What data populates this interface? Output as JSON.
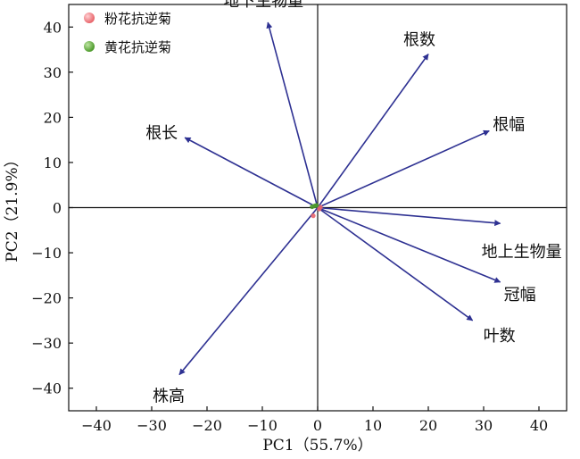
{
  "chart_data": {
    "type": "scatter",
    "subtype": "pca-biplot",
    "title": "",
    "xlabel": "PC1（55.7%）",
    "ylabel": "PC2（21.9%）",
    "xlim": [
      -45,
      45
    ],
    "ylim": [
      -45,
      45
    ],
    "xticks": [
      -40,
      -30,
      -20,
      -10,
      0,
      10,
      20,
      30,
      40
    ],
    "yticks": [
      -40,
      -30,
      -20,
      -10,
      0,
      10,
      20,
      30,
      40
    ],
    "grid": false,
    "reference_lines": {
      "x": 0,
      "y": 0
    },
    "legend_position": "top-left",
    "series": [
      {
        "name": "粉花抗逆菊",
        "color": "#e8646a",
        "points": [
          {
            "x": 0.5,
            "y": 0.1
          },
          {
            "x": -0.8,
            "y": -1.8
          },
          {
            "x": 0.3,
            "y": -0.3
          }
        ]
      },
      {
        "name": "黄花抗逆菊",
        "color": "#4c9a2a",
        "points": [
          {
            "x": -0.5,
            "y": 0.4
          },
          {
            "x": -1.0,
            "y": 0.2
          },
          {
            "x": -0.2,
            "y": 0.5
          }
        ]
      }
    ],
    "loadings_color": "#2e3192",
    "loadings": [
      {
        "label": "地下生物量",
        "x": -9,
        "y": 41
      },
      {
        "label": "根数",
        "x": 20,
        "y": 34
      },
      {
        "label": "根幅",
        "x": 31,
        "y": 17
      },
      {
        "label": "根长",
        "x": -24,
        "y": 15.5
      },
      {
        "label": "地上生物量",
        "x": 33,
        "y": -3.5
      },
      {
        "label": "冠幅",
        "x": 33,
        "y": -16.5
      },
      {
        "label": "叶数",
        "x": 28,
        "y": -25
      },
      {
        "label": "株高",
        "x": -25,
        "y": -37
      }
    ]
  }
}
